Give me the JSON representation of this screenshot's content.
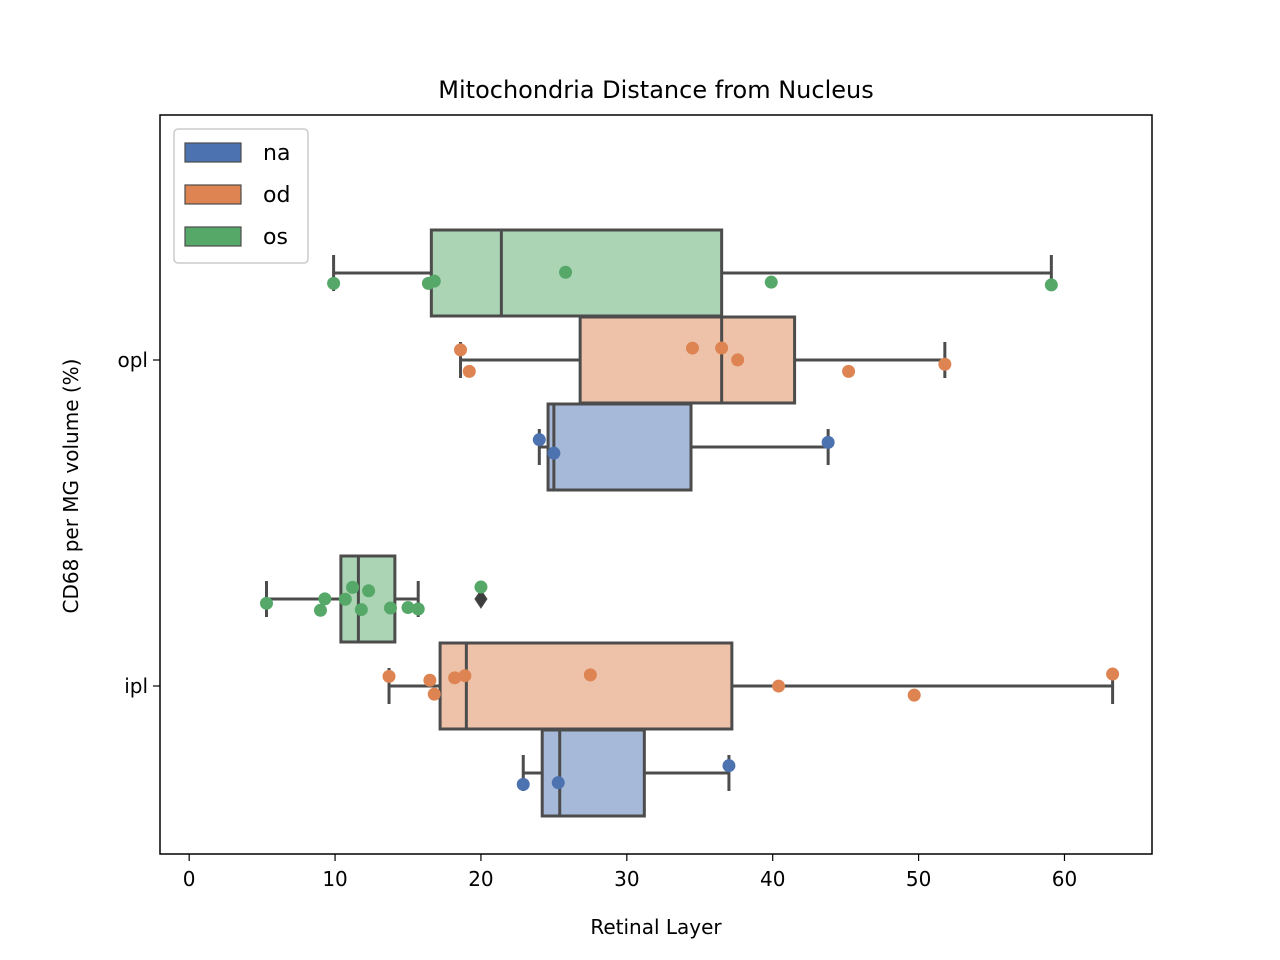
{
  "chart_data": {
    "type": "boxplot",
    "orientation": "horizontal",
    "title": "Mitochondria Distance from Nucleus",
    "xlabel": "Retinal Layer",
    "ylabel": "CD68 per MG volume (%)",
    "xlim": [
      -2,
      66
    ],
    "xticks": [
      0,
      10,
      20,
      30,
      40,
      50,
      60
    ],
    "xtick_labels": [
      "0",
      "10",
      "20",
      "30",
      "40",
      "50",
      "60"
    ],
    "categories": [
      "opl",
      "ipl"
    ],
    "legend": {
      "placement": "upper-left",
      "entries": [
        {
          "label": "na",
          "color": "#4c72b0"
        },
        {
          "label": "od",
          "color": "#dd8452"
        },
        {
          "label": "os",
          "color": "#55a868"
        }
      ]
    },
    "box_style": {
      "box_alpha": 0.5,
      "line_color": "#4c4c4c"
    },
    "boxes": [
      {
        "category": "opl",
        "hue": "os",
        "whisker_low": 9.9,
        "q1": 16.6,
        "median": 21.4,
        "q3": 36.5,
        "whisker_high": 59.1,
        "outliers": []
      },
      {
        "category": "opl",
        "hue": "od",
        "whisker_low": 18.6,
        "q1": 26.8,
        "median": 36.5,
        "q3": 41.5,
        "whisker_high": 51.8,
        "outliers": []
      },
      {
        "category": "opl",
        "hue": "na",
        "whisker_low": 24.0,
        "q1": 24.6,
        "median": 25.0,
        "q3": 34.4,
        "whisker_high": 43.8,
        "outliers": []
      },
      {
        "category": "ipl",
        "hue": "os",
        "whisker_low": 5.3,
        "q1": 10.4,
        "median": 11.6,
        "q3": 14.1,
        "whisker_high": 15.7,
        "outliers": [
          20.0
        ]
      },
      {
        "category": "ipl",
        "hue": "od",
        "whisker_low": 13.7,
        "q1": 17.2,
        "median": 19.0,
        "q3": 37.2,
        "whisker_high": 63.3,
        "outliers": []
      },
      {
        "category": "ipl",
        "hue": "na",
        "whisker_low": 22.9,
        "q1": 24.2,
        "median": 25.4,
        "q3": 31.2,
        "whisker_high": 37.0,
        "outliers": []
      }
    ],
    "points": [
      {
        "category": "opl",
        "hue": "os",
        "values": [
          9.9,
          16.4,
          16.8,
          25.8,
          39.9,
          59.1
        ]
      },
      {
        "category": "opl",
        "hue": "od",
        "values": [
          18.6,
          19.2,
          34.5,
          36.5,
          37.6,
          45.2,
          51.8
        ]
      },
      {
        "category": "opl",
        "hue": "na",
        "values": [
          24.0,
          25.0,
          43.8
        ]
      },
      {
        "category": "ipl",
        "hue": "os",
        "values": [
          5.3,
          9.0,
          9.3,
          10.7,
          11.2,
          11.8,
          12.3,
          13.8,
          15.0,
          15.7,
          20.0
        ]
      },
      {
        "category": "ipl",
        "hue": "od",
        "values": [
          13.7,
          16.5,
          16.8,
          18.2,
          18.9,
          27.5,
          40.4,
          49.7,
          63.3
        ]
      },
      {
        "category": "ipl",
        "hue": "na",
        "values": [
          22.9,
          25.3,
          37.0
        ]
      }
    ]
  }
}
